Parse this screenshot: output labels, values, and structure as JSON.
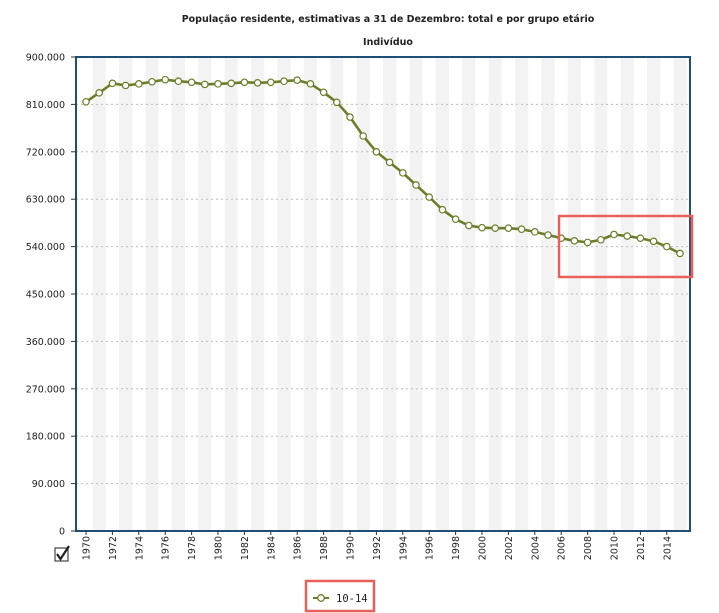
{
  "chart_data": {
    "type": "line",
    "title": "População residente, estimativas a 31 de Dezembro: total e por grupo etário",
    "subtitle": "Indivíduo",
    "xlabel": "",
    "ylabel": "",
    "ylim": [
      0,
      900000
    ],
    "xlim": [
      1970,
      2015
    ],
    "y_ticks": [
      "0",
      "90.000",
      "180.000",
      "270.000",
      "360.000",
      "450.000",
      "540.000",
      "630.000",
      "720.000",
      "810.000",
      "900.000"
    ],
    "x_ticks": [
      "1970",
      "1972",
      "1974",
      "1976",
      "1978",
      "1980",
      "1982",
      "1984",
      "1986",
      "1988",
      "1990",
      "1992",
      "1994",
      "1996",
      "1998",
      "2000",
      "2002",
      "2004",
      "2006",
      "2008",
      "2010",
      "2012",
      "2014"
    ],
    "grid": "horizontal dotted, alternating vertical year bands",
    "legend_position": "bottom-center",
    "series": [
      {
        "name": "10-14",
        "color": "#6b7f2a",
        "x": [
          1970,
          1971,
          1972,
          1973,
          1974,
          1975,
          1976,
          1977,
          1978,
          1979,
          1980,
          1981,
          1982,
          1983,
          1984,
          1985,
          1986,
          1987,
          1988,
          1989,
          1990,
          1991,
          1992,
          1993,
          1994,
          1995,
          1996,
          1997,
          1998,
          1999,
          2000,
          2001,
          2002,
          2003,
          2004,
          2005,
          2006,
          2007,
          2008,
          2009,
          2010,
          2011,
          2012,
          2013,
          2014,
          2015
        ],
        "values": [
          815000,
          832000,
          850000,
          846000,
          849000,
          853000,
          857000,
          854000,
          852000,
          848000,
          849000,
          850000,
          852000,
          851000,
          852000,
          854000,
          856000,
          849000,
          833000,
          814000,
          786000,
          750000,
          720000,
          700000,
          680000,
          657000,
          634000,
          610000,
          592000,
          580000,
          576000,
          575000,
          575000,
          573000,
          568000,
          562000,
          556000,
          551000,
          548000,
          553000,
          563000,
          560000,
          556000,
          550000,
          540000,
          527000
        ]
      }
    ]
  },
  "ui": {
    "checkbox_checked": true,
    "legend_items": [
      {
        "label": "10-14",
        "color": "#6b7f2a",
        "icon": "line-circle-marker-icon"
      }
    ]
  },
  "annotations": [
    {
      "type": "highlight-box",
      "color": "#e8605a",
      "target": "series-segment",
      "x_range": [
        2006,
        2015
      ]
    },
    {
      "type": "highlight-box",
      "color": "#e8605a",
      "target": "legend"
    }
  ]
}
